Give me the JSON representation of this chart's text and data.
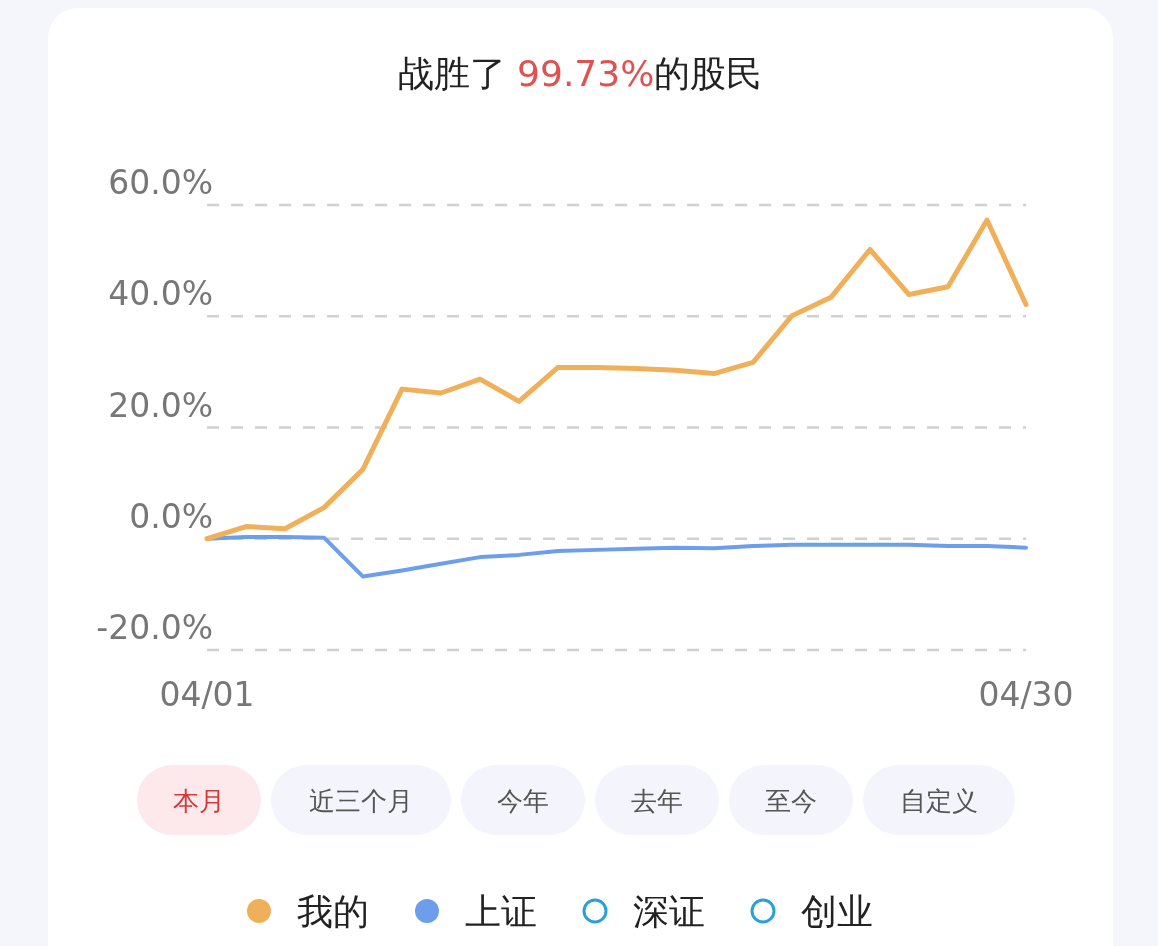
{
  "chart_data": {
    "type": "line",
    "title": "战胜了 99.73%的股民",
    "categories": [
      "04/01",
      null,
      null,
      null,
      null,
      null,
      null,
      null,
      null,
      null,
      null,
      null,
      null,
      null,
      null,
      null,
      null,
      null,
      null,
      null,
      null,
      "04/30"
    ],
    "series": [
      {
        "name": "我的",
        "color": "#f0b05a",
        "values": [
          0,
          2.2,
          1.8,
          5.6,
          12.5,
          26.9,
          26.2,
          28.7,
          24.7,
          30.8,
          30.8,
          30.6,
          30.3,
          29.7,
          31.7,
          40.1,
          43.4,
          52.0,
          43.9,
          45.3,
          57.3,
          42.1
        ]
      },
      {
        "name": "上证",
        "color": "#6d9eeb",
        "values": [
          0,
          0.3,
          0.3,
          0.2,
          -6.8,
          -5.7,
          -4.5,
          -3.3,
          -2.9,
          -2.2,
          -2.0,
          -1.8,
          -1.6,
          -1.7,
          -1.3,
          -1.1,
          -1.1,
          -1.1,
          -1.1,
          -1.3,
          -1.3,
          -1.6
        ]
      },
      {
        "name": "深证",
        "color": "#2aa0d8",
        "values": [
          null,
          null,
          null,
          null,
          null,
          null,
          null,
          null,
          null,
          null,
          null,
          null,
          null,
          null,
          null,
          null,
          null,
          null,
          null,
          null,
          null,
          null
        ]
      },
      {
        "name": "创业",
        "color": "#2aa0d8",
        "values": [
          null,
          null,
          null,
          null,
          null,
          null,
          null,
          null,
          null,
          null,
          null,
          null,
          null,
          null,
          null,
          null,
          null,
          null,
          null,
          null,
          null,
          null
        ]
      }
    ],
    "ylim": [
      -20,
      60
    ],
    "yticks": [
      {
        "value": -20,
        "label": "-20.0%"
      },
      {
        "value": 0,
        "label": "0.0%"
      },
      {
        "value": 20,
        "label": "20.0%"
      },
      {
        "value": 40,
        "label": "40.0%"
      },
      {
        "value": 60,
        "label": "60.0%"
      }
    ],
    "grid": "y",
    "legend": "bottom",
    "marker": "none",
    "line_style": "solid",
    "annotations": [
      "本月",
      "近三个月",
      "今年",
      "去年",
      "至今",
      "自定义"
    ]
  }
}
